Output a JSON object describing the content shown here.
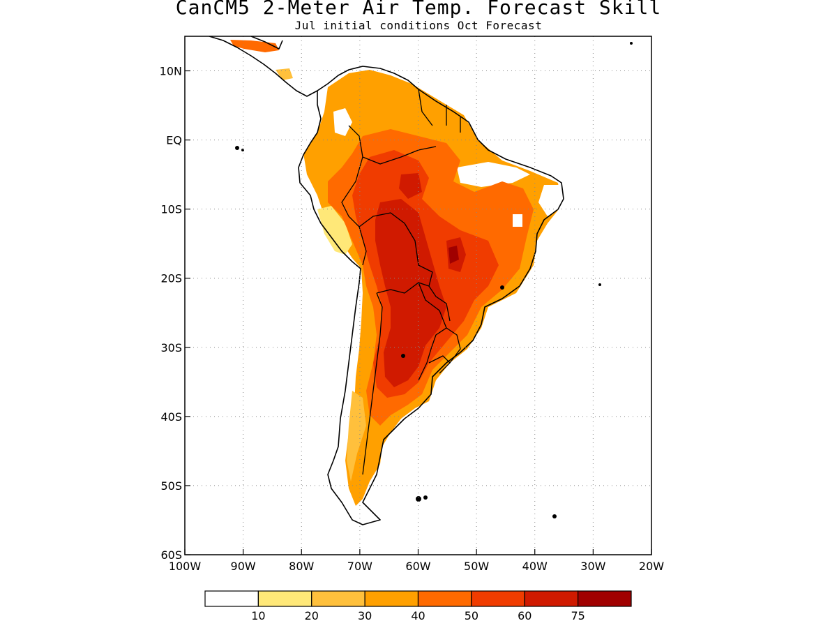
{
  "title": "CanCM5 2-Meter Air Temp. Forecast Skill",
  "subtitle": "Jul initial conditions  Oct Forecast",
  "map": {
    "lon_range": [
      -100,
      -20
    ],
    "lat_range": [
      -60,
      15
    ],
    "lon_ticks": [
      "100W",
      "90W",
      "80W",
      "70W",
      "60W",
      "50W",
      "40W",
      "30W",
      "20W"
    ],
    "lat_ticks": [
      "10N",
      "EQ",
      "10S",
      "20S",
      "30S",
      "40S",
      "50S",
      "60S"
    ],
    "grid": "dotted"
  },
  "colorbar": {
    "labels": [
      "10",
      "20",
      "30",
      "40",
      "50",
      "60",
      "75"
    ],
    "colors": [
      "#ffffff",
      "#ffe878",
      "#ffc03c",
      "#ffa000",
      "#ff6a00",
      "#f03c00",
      "#d01a00",
      "#a00000"
    ]
  }
}
